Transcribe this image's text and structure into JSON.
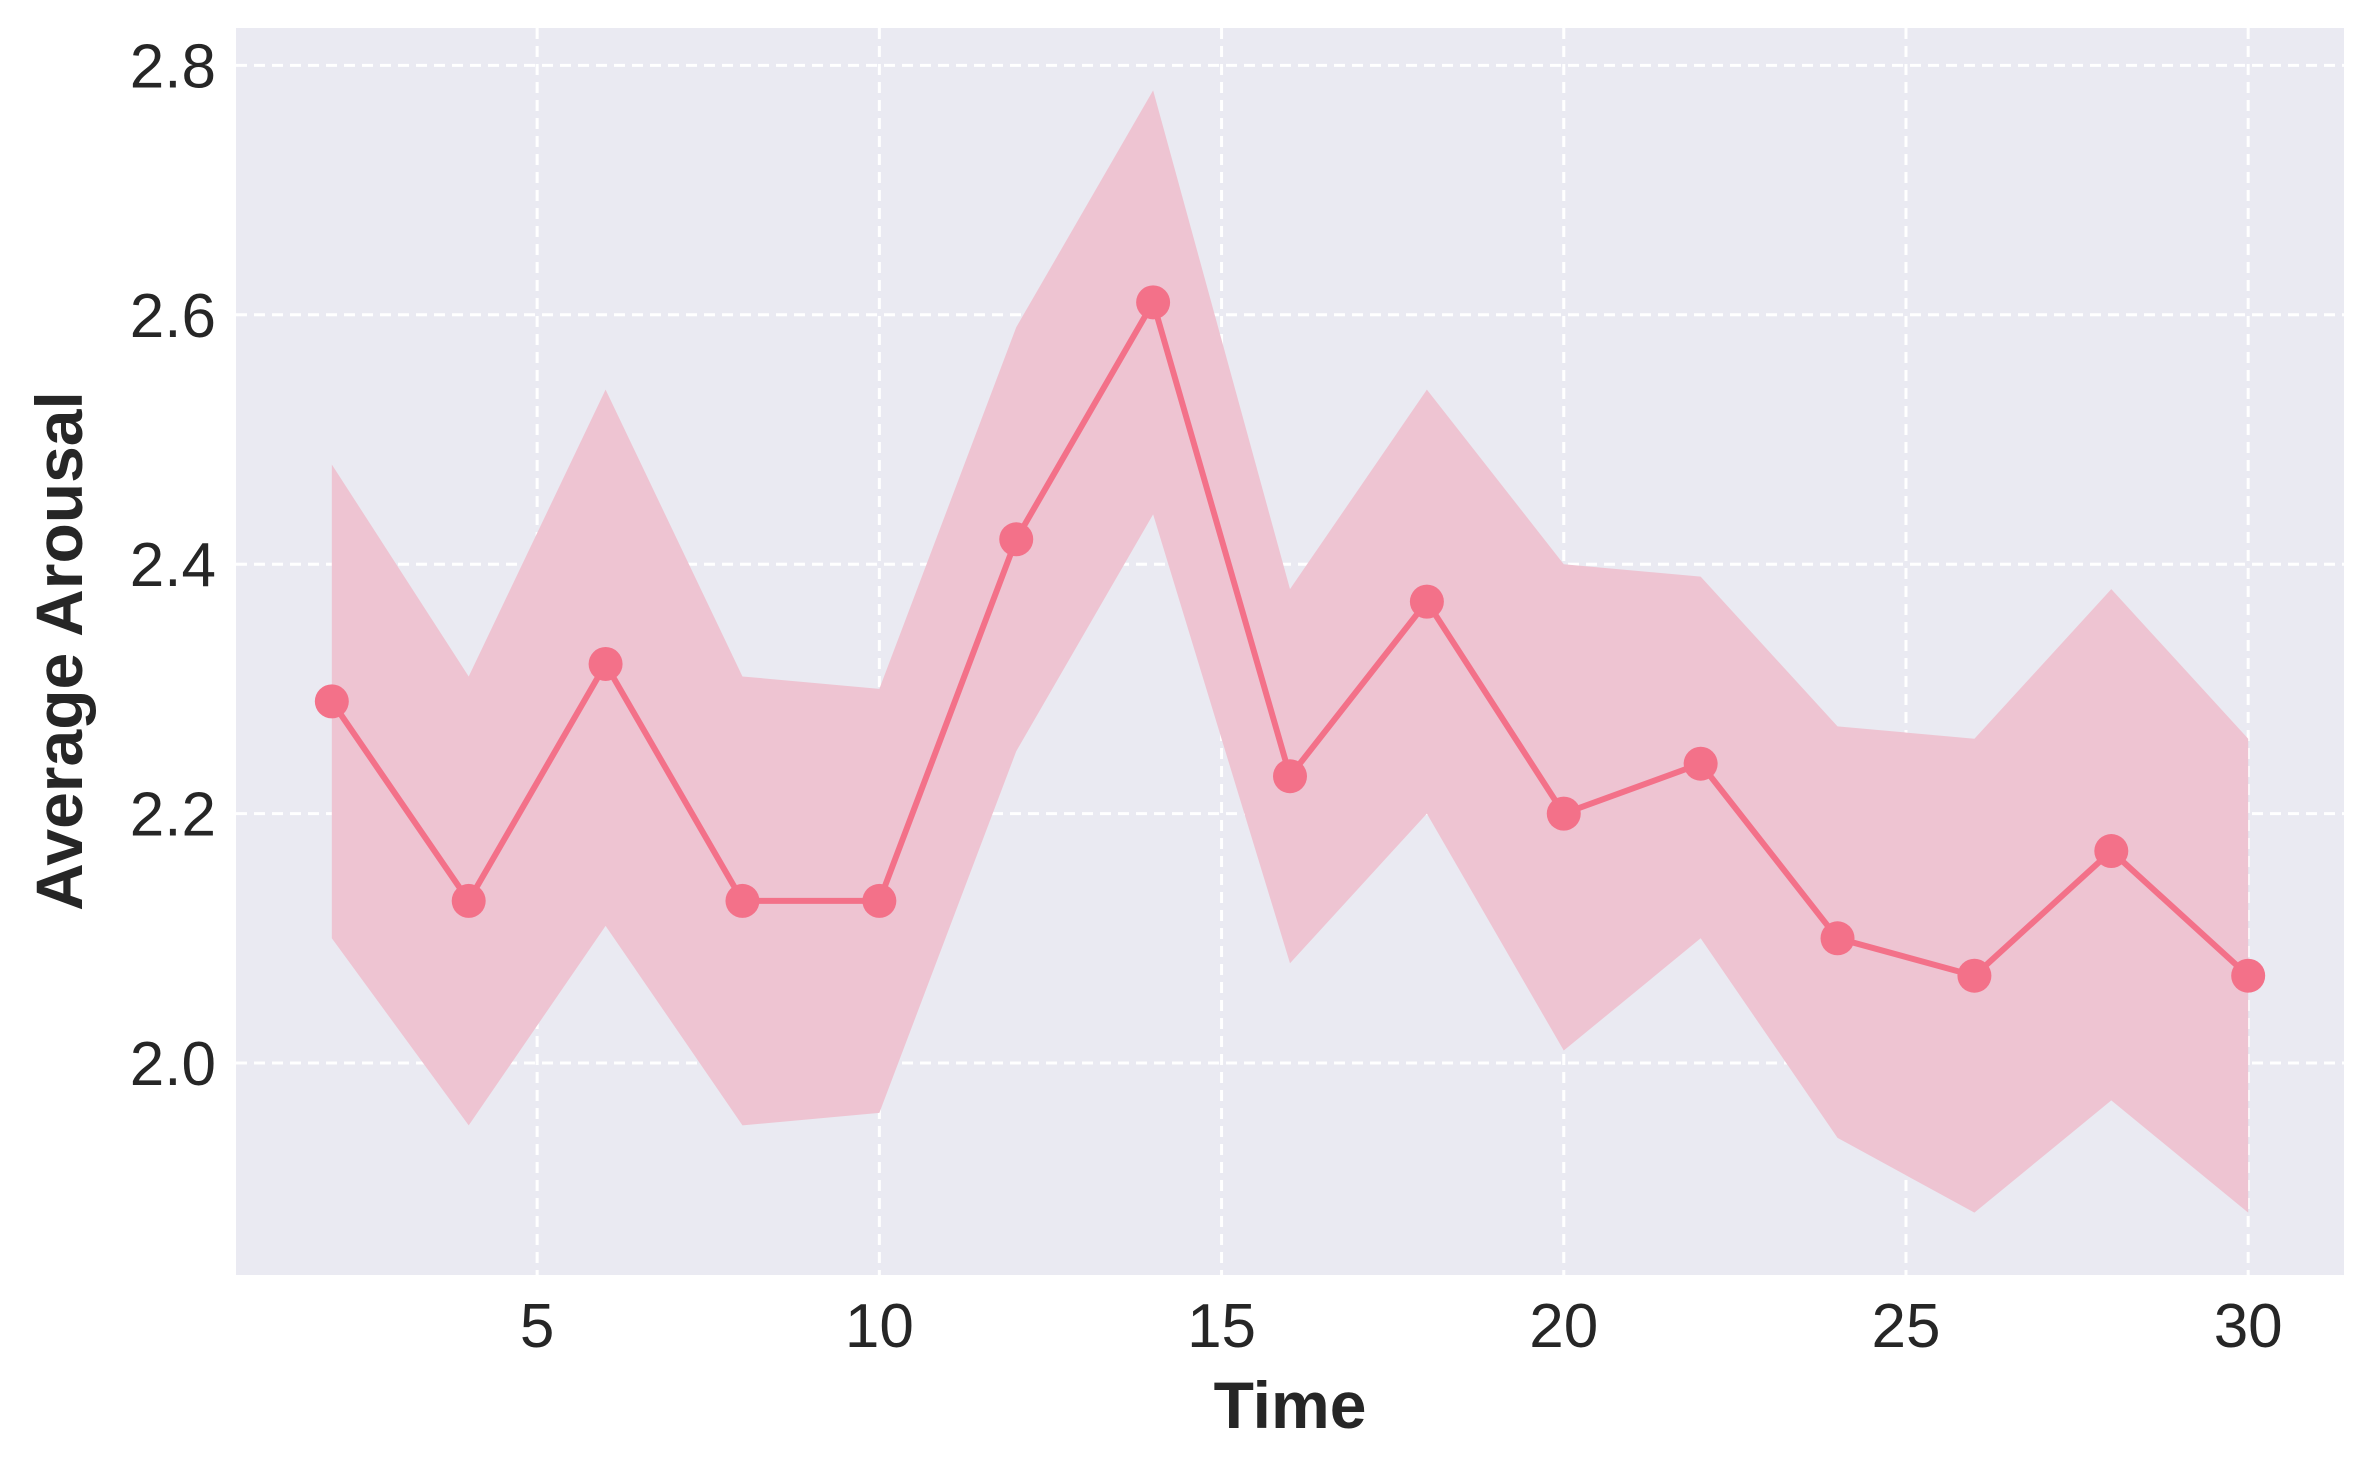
{
  "chart_data": {
    "type": "line",
    "title": "",
    "xlabel": "Time",
    "ylabel": "Average Arousal",
    "xlim": [
      0.6,
      31.4
    ],
    "ylim": [
      1.83,
      2.83
    ],
    "xticks": [
      5,
      10,
      15,
      20,
      25,
      30
    ],
    "yticks": [
      2.0,
      2.2,
      2.4,
      2.6,
      2.8
    ],
    "xtick_labels": [
      "5",
      "10",
      "15",
      "20",
      "25",
      "30"
    ],
    "ytick_labels": [
      "2.0",
      "2.2",
      "2.4",
      "2.6",
      "2.8"
    ],
    "grid": true,
    "grid_style": "dashed",
    "legend": "none",
    "series": [
      {
        "x": [
          2,
          4,
          6,
          8,
          10,
          12,
          14,
          16,
          18,
          20,
          22,
          24,
          26,
          28,
          30
        ],
        "y": [
          2.29,
          2.13,
          2.32,
          2.13,
          2.13,
          2.42,
          2.61,
          2.23,
          2.37,
          2.2,
          2.24,
          2.1,
          2.07,
          2.17,
          2.07
        ],
        "lower": [
          2.1,
          1.95,
          2.11,
          1.95,
          1.96,
          2.25,
          2.44,
          2.08,
          2.2,
          2.01,
          2.1,
          1.94,
          1.88,
          1.97,
          1.88
        ],
        "upper": [
          2.48,
          2.31,
          2.54,
          2.31,
          2.3,
          2.59,
          2.78,
          2.38,
          2.54,
          2.4,
          2.39,
          2.27,
          2.26,
          2.38,
          2.26
        ],
        "color": "#f37189",
        "band_color": "#eec4d2"
      }
    ],
    "colors": {
      "plot_background": "#eaeaf2",
      "grid": "#ffffff",
      "text": "#262626"
    }
  }
}
